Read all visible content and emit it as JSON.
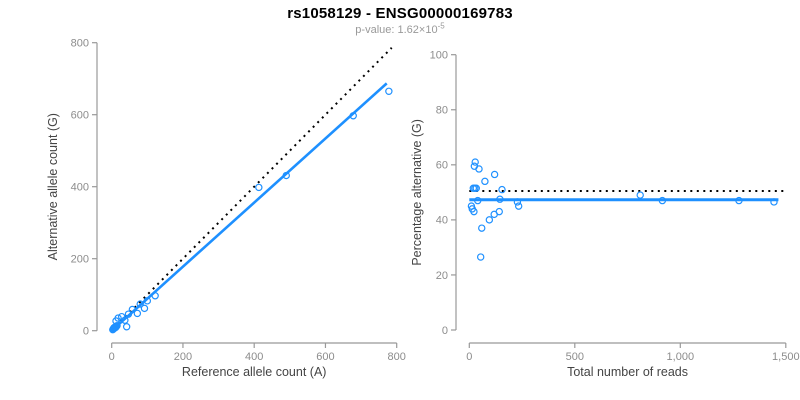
{
  "header": {
    "title": "rs1058129 - ENSG00000169783",
    "subtitle_prefix": "p-value: 1.62×10",
    "subtitle_exponent": "-5"
  },
  "colors": {
    "point_blue": "#1E90FF",
    "fit_line_blue": "#1E90FF",
    "dotted_black": "#000000",
    "axis_line": "#999999",
    "tick_label": "#8c8c8c",
    "axis_title": "#444444",
    "title_text": "#000000",
    "subtitle_text": "#999999",
    "background": "#ffffff"
  },
  "chart_data": [
    {
      "type": "scatter",
      "name": "ref-vs-alt-count",
      "xlabel": "Reference allele count (A)",
      "ylabel": "Alternative allele count (G)",
      "xlim": [
        0,
        800
      ],
      "ylim": [
        0,
        800
      ],
      "xticks": [
        0,
        200,
        400,
        600,
        800
      ],
      "xtick_labels": [
        "0",
        "200",
        "400",
        "600",
        "800"
      ],
      "yticks": [
        0,
        200,
        400,
        600,
        800
      ],
      "ytick_labels": [
        "0",
        "200",
        "400",
        "600",
        "800"
      ],
      "grid": false,
      "legend": null,
      "marker": "open-circle",
      "points": [
        [
          3,
          3
        ],
        [
          5,
          5
        ],
        [
          6,
          8
        ],
        [
          8,
          7
        ],
        [
          9,
          10
        ],
        [
          11,
          9
        ],
        [
          13,
          12
        ],
        [
          15,
          14
        ],
        [
          12,
          27
        ],
        [
          18,
          35
        ],
        [
          28,
          39
        ],
        [
          37,
          29
        ],
        [
          42,
          11
        ],
        [
          47,
          46
        ],
        [
          58,
          59
        ],
        [
          72,
          48
        ],
        [
          80,
          74
        ],
        [
          92,
          62
        ],
        [
          100,
          83
        ],
        [
          122,
          97
        ],
        [
          413,
          398
        ],
        [
          490,
          431
        ],
        [
          678,
          597
        ],
        [
          778,
          665
        ]
      ],
      "lines": [
        {
          "name": "identity-line",
          "style": "dotted",
          "width": 2,
          "color_key": "dotted_black",
          "from": [
            0,
            0
          ],
          "to": [
            786,
            786
          ]
        },
        {
          "name": "fit-line",
          "style": "solid",
          "width": 2.6,
          "color_key": "fit_line_blue",
          "from": [
            0,
            0
          ],
          "to": [
            772,
            687
          ]
        }
      ]
    },
    {
      "type": "scatter",
      "name": "reads-vs-percentage",
      "xlabel": "Total number of reads",
      "ylabel": "Percentage alternative (G)",
      "xlim": [
        0,
        1500
      ],
      "ylim": [
        0,
        100
      ],
      "xticks": [
        0,
        500,
        1000,
        1500
      ],
      "xtick_labels": [
        "0",
        "500",
        "1,000",
        "1,500"
      ],
      "yticks": [
        0,
        20,
        40,
        60,
        80,
        100
      ],
      "ytick_labels": [
        "0",
        "20",
        "40",
        "60",
        "80",
        "100"
      ],
      "grid": false,
      "legend": null,
      "marker": "open-circle",
      "points": [
        [
          10,
          45
        ],
        [
          14,
          44
        ],
        [
          19,
          51.5
        ],
        [
          22,
          43
        ],
        [
          24,
          59.5
        ],
        [
          26,
          51.5
        ],
        [
          28,
          61
        ],
        [
          33,
          51.5
        ],
        [
          40,
          47
        ],
        [
          46,
          58.5
        ],
        [
          54,
          26.5
        ],
        [
          59,
          37
        ],
        [
          74,
          54
        ],
        [
          95,
          40
        ],
        [
          118,
          42
        ],
        [
          120,
          56.5
        ],
        [
          142,
          43
        ],
        [
          145,
          47.5
        ],
        [
          155,
          51
        ],
        [
          228,
          46.5
        ],
        [
          234,
          45
        ],
        [
          810,
          49
        ],
        [
          915,
          47
        ],
        [
          1278,
          47
        ],
        [
          1444,
          46.5
        ]
      ],
      "lines": [
        {
          "name": "expected-percentage-line",
          "style": "dotted",
          "width": 2,
          "color_key": "dotted_black",
          "from": [
            0,
            50.5
          ],
          "to": [
            1500,
            50.5
          ]
        },
        {
          "name": "fit-line",
          "style": "solid",
          "width": 3,
          "color_key": "fit_line_blue",
          "from": [
            0,
            47.3
          ],
          "to": [
            1465,
            47.3
          ]
        }
      ]
    }
  ]
}
